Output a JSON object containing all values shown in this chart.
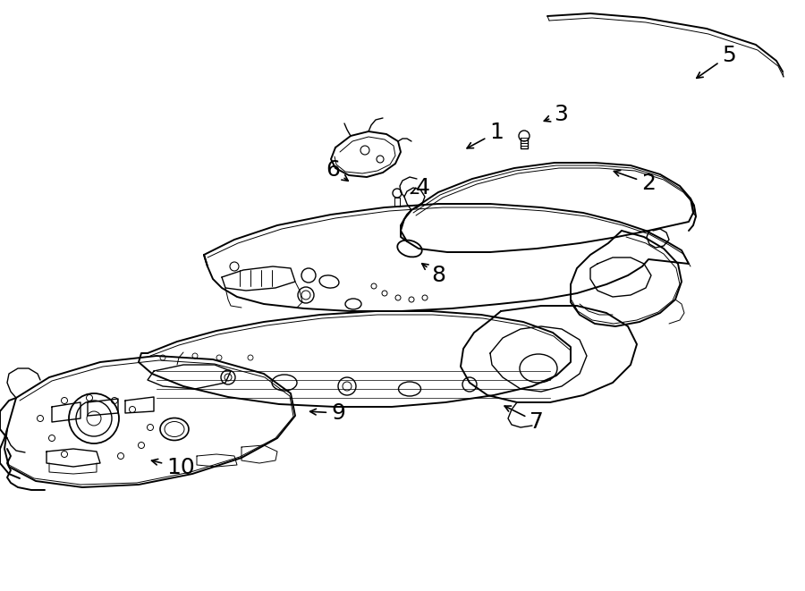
{
  "background_color": "#ffffff",
  "line_color": "#000000",
  "lw": 1.0,
  "figsize": [
    9.0,
    6.61
  ],
  "dpi": 100,
  "annotations": [
    [
      "1",
      555,
      148,
      518,
      168,
      "right"
    ],
    [
      "2",
      725,
      205,
      682,
      190,
      "right"
    ],
    [
      "3",
      627,
      128,
      604,
      137,
      "right"
    ],
    [
      "4",
      473,
      210,
      456,
      218,
      "right"
    ],
    [
      "5",
      815,
      62,
      775,
      90,
      "right"
    ],
    [
      "6",
      372,
      190,
      393,
      205,
      "right"
    ],
    [
      "7",
      600,
      472,
      560,
      452,
      "right"
    ],
    [
      "8",
      490,
      308,
      468,
      292,
      "right"
    ],
    [
      "9",
      378,
      462,
      342,
      460,
      "right"
    ],
    [
      "10",
      202,
      523,
      165,
      514,
      "right"
    ]
  ]
}
